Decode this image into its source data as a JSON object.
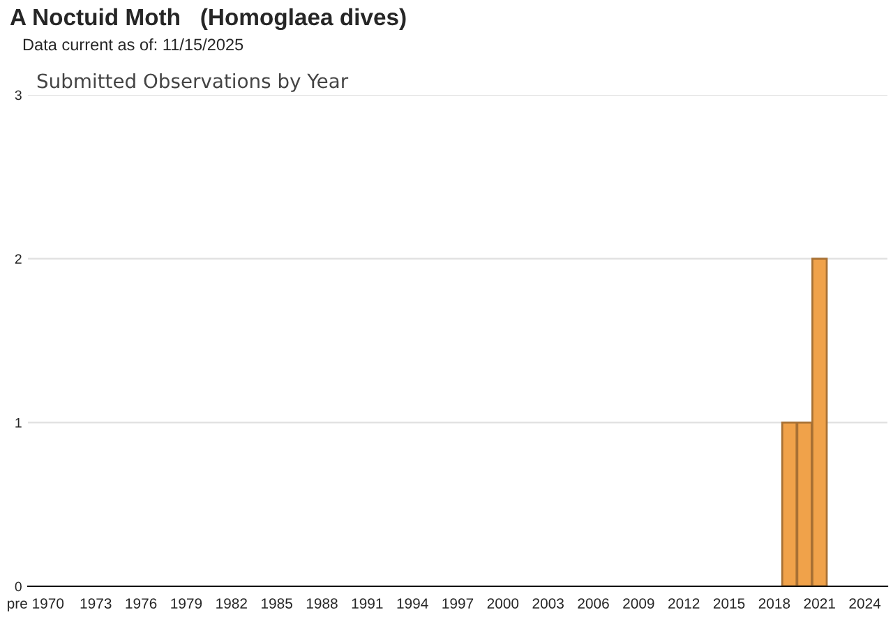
{
  "chart_data": {
    "type": "bar",
    "title": "A Noctuid Moth   (Homoglaea dives)",
    "subtitle": "Data current as of: 11/15/2025",
    "annotations": [
      "Submitted Observations by Year"
    ],
    "categories": [
      "pre 1970",
      null,
      null,
      null,
      "1973",
      null,
      null,
      "1976",
      null,
      null,
      "1979",
      null,
      null,
      "1982",
      null,
      null,
      "1985",
      null,
      null,
      "1988",
      null,
      null,
      "1991",
      null,
      null,
      "1994",
      null,
      null,
      "1997",
      null,
      null,
      "2000",
      null,
      null,
      "2003",
      null,
      null,
      "2006",
      null,
      null,
      "2009",
      null,
      null,
      "2012",
      null,
      null,
      "2015",
      null,
      null,
      "2018",
      null,
      null,
      "2021",
      null,
      null,
      "2024",
      null
    ],
    "values": [
      0,
      0,
      0,
      0,
      0,
      0,
      0,
      0,
      0,
      0,
      0,
      0,
      0,
      0,
      0,
      0,
      0,
      0,
      0,
      0,
      0,
      0,
      0,
      0,
      0,
      0,
      0,
      0,
      0,
      0,
      0,
      0,
      0,
      0,
      0,
      0,
      0,
      0,
      0,
      0,
      0,
      0,
      0,
      0,
      0,
      0,
      0,
      0,
      0,
      0,
      1,
      1,
      2,
      0,
      0,
      0,
      0
    ],
    "color": "#f0a24a",
    "ylim": [
      0,
      3
    ],
    "yticks": [
      0,
      1,
      2,
      3
    ],
    "grid": "y",
    "legend": false
  }
}
